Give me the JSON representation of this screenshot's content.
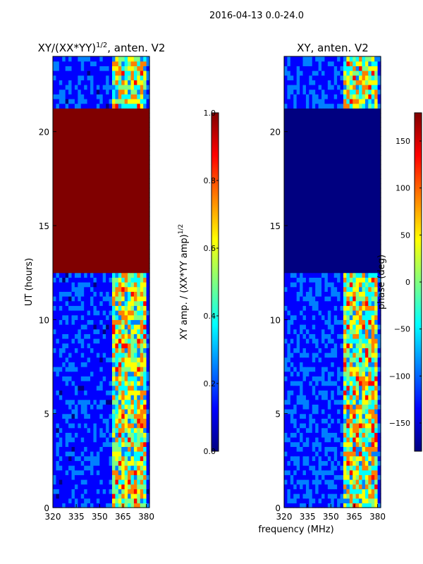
{
  "suptitle": "2016-04-13 0.0-24.0",
  "colors": {
    "jet": [
      "#000080",
      "#0000ff",
      "#0080ff",
      "#00ffff",
      "#80ff80",
      "#ffff00",
      "#ff8000",
      "#ff0000",
      "#800000"
    ]
  },
  "chart_data": [
    {
      "type": "heatmap",
      "title": "XY/(XX*YY)^{1/2}, anten. V2",
      "title_main": "XY/(XX*YY)",
      "title_exp": "1/2",
      "title_tail": ", anten. V2",
      "xlabel": "",
      "ylabel": "UT (hours)",
      "xlim": [
        320,
        382
      ],
      "ylim": [
        0,
        24
      ],
      "xticks": [
        320,
        335,
        350,
        365,
        380
      ],
      "yticks": [
        0,
        5,
        10,
        15,
        20
      ],
      "description_regions": [
        {
          "y_range": [
            12.6,
            21.2
          ],
          "value": 1.0
        },
        {
          "y_range": [
            0,
            12.6
          ],
          "value": 0.15,
          "bright_x_range": [
            359,
            380
          ]
        },
        {
          "y_range": [
            21.2,
            24
          ],
          "value": 0.15,
          "bright_x_range": [
            359,
            380
          ]
        }
      ],
      "colorbar": {
        "label": "XY amp. / (XX*YY amp)^{1/2}",
        "label_main": "XY amp. / (XX*YY amp)",
        "label_exp": "1/2",
        "range": [
          0.0,
          1.0
        ],
        "ticks": [
          "0.0",
          "0.2",
          "0.4",
          "0.6",
          "0.8",
          "1.0"
        ],
        "tick_values": [
          0.0,
          0.2,
          0.4,
          0.6,
          0.8,
          1.0
        ]
      }
    },
    {
      "type": "heatmap",
      "title": "XY, anten. V2",
      "xlabel": "frequency (MHz)",
      "ylabel": "",
      "xlim": [
        320,
        382
      ],
      "ylim": [
        0,
        24
      ],
      "xticks": [
        320,
        335,
        350,
        365,
        380
      ],
      "yticks": [
        0,
        5,
        10,
        15,
        20
      ],
      "description_regions": [
        {
          "y_range": [
            12.6,
            21.2
          ],
          "value": -180
        },
        {
          "y_range": [
            0,
            12.6
          ],
          "value": -120,
          "bright_x_range": [
            359,
            380
          ]
        },
        {
          "y_range": [
            21.2,
            24
          ],
          "value": -120,
          "bright_x_range": [
            359,
            380
          ]
        }
      ],
      "colorbar": {
        "label": "phase (deg)",
        "range": [
          -180,
          180
        ],
        "ticks": [
          "150",
          "100",
          "50",
          "0",
          "−50",
          "−100",
          "−150"
        ],
        "tick_values": [
          150,
          100,
          50,
          0,
          -50,
          -100,
          -150
        ]
      }
    }
  ]
}
